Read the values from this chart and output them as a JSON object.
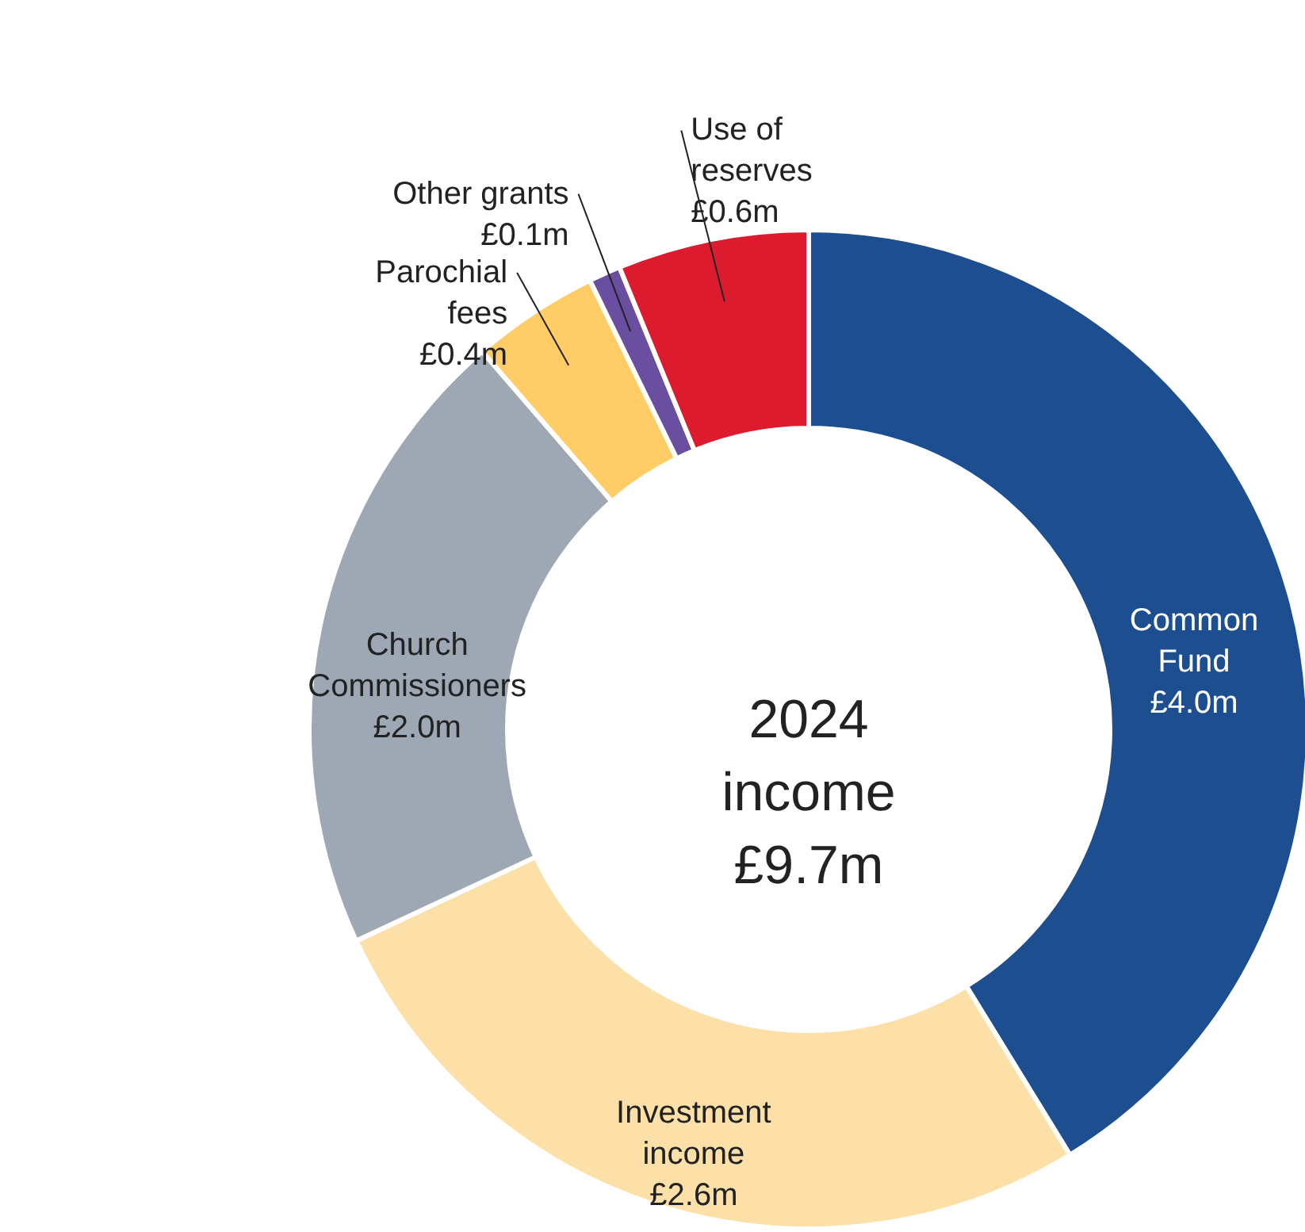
{
  "chart_data": {
    "type": "donut",
    "title": "2024 income £9.7m",
    "categories": [
      "Common Fund",
      "Investment income",
      "Church Commissioners",
      "Parochial fees",
      "Other grants",
      "Use of reserves"
    ],
    "values": [
      4.0,
      2.6,
      2.0,
      0.4,
      0.1,
      0.6
    ],
    "value_labels": [
      "£4.0m",
      "£2.6m",
      "£2.0m",
      "£0.4m",
      "£0.1m",
      "£0.6m"
    ],
    "colors": [
      "#1d4e8f",
      "#fce0a8",
      "#9ea8b5",
      "#ffcc66",
      "#6a4fa0",
      "#dc1c2e"
    ]
  }
}
